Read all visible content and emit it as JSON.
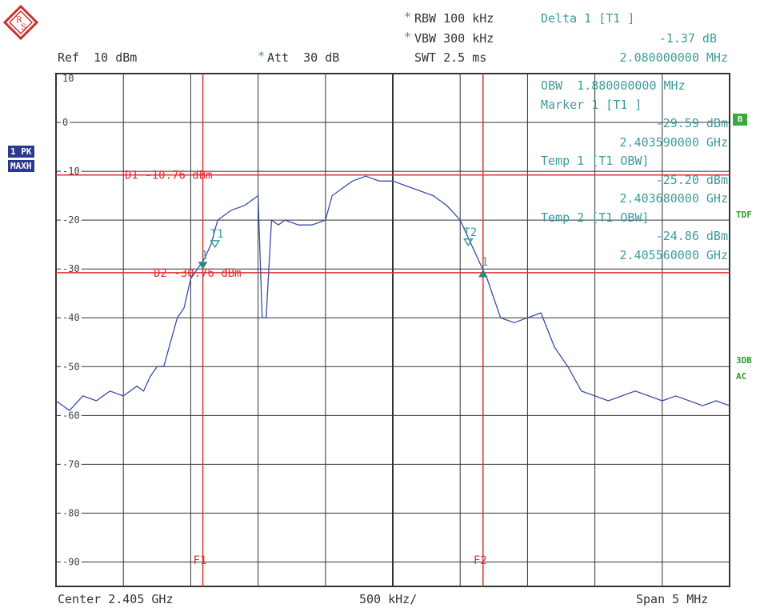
{
  "header": {
    "ref": "Ref  10 dBm",
    "att_star": "*",
    "att": "Att  30 dB",
    "rbw_star": "*",
    "rbw": "RBW 100 kHz",
    "vbw_star": "*",
    "vbw": "VBW 300 kHz",
    "swt": "SWT 2.5 ms",
    "delta_label": "Delta 1 [T1 ]",
    "delta_value": "-1.37 dB",
    "delta_freq": "2.080000000 MHz"
  },
  "markers_panel": [
    "OBW  1.880000000 MHz",
    "Marker 1 [T1 ]",
    "-29.59 dBm",
    "2.403590000 GHz",
    "Temp 1 [T1 OBW]",
    "-25.20 dBm",
    "2.403680000 GHz",
    "Temp 2 [T1 OBW]",
    "-24.86 dBm",
    "2.405560000 GHz"
  ],
  "side": {
    "trace1": "1 PK",
    "trace2": "MAXH",
    "b_box": "B",
    "tdf": "TDF",
    "db3": "3DB",
    "ac": "AC"
  },
  "footer": {
    "center": "Center 2.405 GHz",
    "per_div": "500 kHz/",
    "span": "Span 5 MHz"
  },
  "colors": {
    "trace": "#3a4fa8",
    "lines": "#e03030",
    "marker": "#3e9b9b",
    "grid": "#333333"
  },
  "chart_data": {
    "type": "line",
    "xlabel": "",
    "ylabel": "",
    "xlim": [
      2.4025,
      2.4075
    ],
    "ylim": [
      -95,
      10
    ],
    "x_unit": "GHz",
    "y_unit": "dBm",
    "y_ticks": [
      10,
      0,
      -10,
      -20,
      -30,
      -40,
      -50,
      -60,
      -70,
      -80,
      -90
    ],
    "y_tick_labels": [
      "10",
      "0",
      "-10",
      "-20",
      "-30",
      "-40",
      "-50",
      "-60",
      "-70",
      "-80",
      "-90"
    ],
    "hlines": [
      {
        "label": "D1  -10.76 dBm",
        "y": -10.76
      },
      {
        "label": "D2  -30.76 dBm",
        "y": -30.76
      }
    ],
    "vlines": [
      {
        "label": "F1",
        "x": 2.40359
      },
      {
        "label": "F2",
        "x": 2.40567
      }
    ],
    "markers": [
      {
        "label": "1",
        "x": 2.40359,
        "y": -29.59
      },
      {
        "label": "T1",
        "x": 2.40368,
        "y": -25.2
      },
      {
        "label": "T2",
        "x": 2.40556,
        "y": -24.86
      },
      {
        "label": "1",
        "x": 2.40567,
        "y": -30.96
      }
    ],
    "series": [
      {
        "x": [
          2.4025,
          2.4026,
          2.4027,
          2.4028,
          2.4029,
          2.403,
          2.4031,
          2.40315,
          2.4032,
          2.40325,
          2.4033,
          2.40335,
          2.4034,
          2.40345,
          2.4035,
          2.40355,
          2.4036,
          2.40365,
          2.4037,
          2.4038,
          2.4039,
          2.40395,
          2.404,
          2.40403,
          2.40406,
          2.4041,
          2.40415,
          2.4042,
          2.4043,
          2.4044,
          2.4045,
          2.40455,
          2.4046,
          2.4047,
          2.4048,
          2.4049,
          2.405,
          2.4051,
          2.4052,
          2.4053,
          2.4054,
          2.4055,
          2.4056,
          2.4057,
          2.4058,
          2.4059,
          2.406,
          2.4061,
          2.4062,
          2.4063,
          2.4064,
          2.4065,
          2.4066,
          2.4067,
          2.4068,
          2.4069,
          2.407,
          2.4071,
          2.4072,
          2.4073,
          2.4074,
          2.4075
        ],
        "y": [
          -57,
          -59,
          -56,
          -57,
          -55,
          -56,
          -54,
          -55,
          -52,
          -50,
          -50,
          -45,
          -40,
          -38,
          -32,
          -30,
          -28,
          -25,
          -20,
          -18,
          -17,
          -16,
          -15,
          -40,
          -40,
          -20,
          -21,
          -20,
          -21,
          -21,
          -20,
          -15,
          -14,
          -12,
          -11,
          -12,
          -12,
          -13,
          -14,
          -15,
          -17,
          -20,
          -26,
          -32,
          -40,
          -41,
          -40,
          -39,
          -46,
          -50,
          -55,
          -56,
          -57,
          -56,
          -55,
          -56,
          -57,
          -56,
          -57,
          -58,
          -57,
          -58
        ]
      }
    ]
  }
}
